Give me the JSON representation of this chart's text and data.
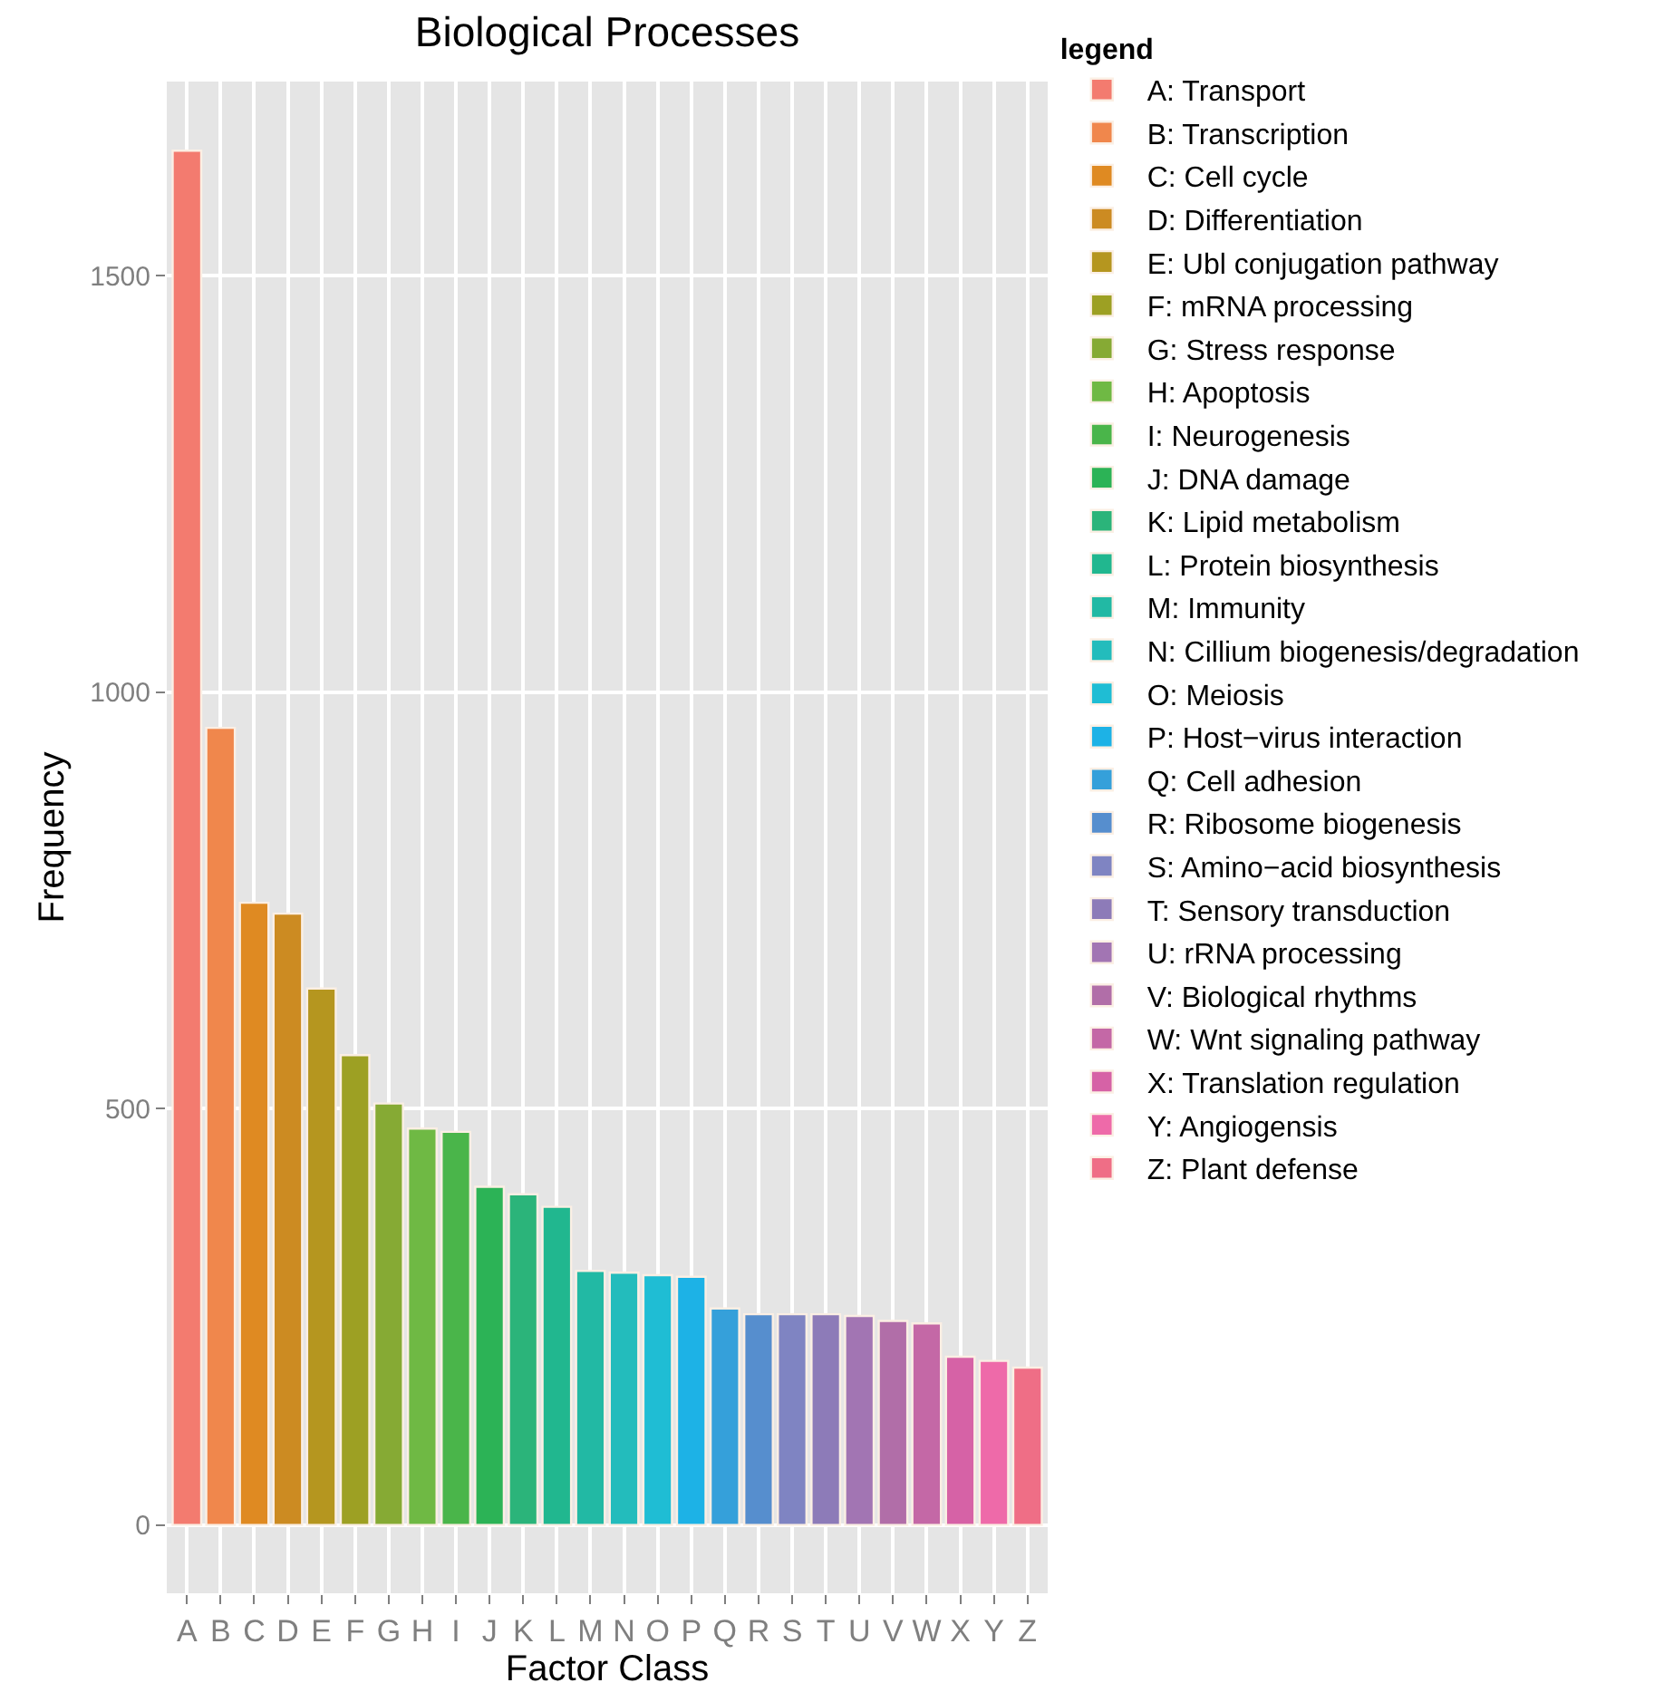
{
  "chart_data": {
    "type": "bar",
    "title": "Biological Processes",
    "xlabel": "Factor Class",
    "ylabel": "Frequency",
    "legend_title": "legend",
    "categories": [
      "A",
      "B",
      "C",
      "D",
      "E",
      "F",
      "G",
      "H",
      "I",
      "J",
      "K",
      "L",
      "M",
      "N",
      "O",
      "P",
      "Q",
      "R",
      "S",
      "T",
      "U",
      "V",
      "W",
      "X",
      "Y",
      "Z"
    ],
    "series": [
      {
        "name": "A: Transport",
        "color": "#f37b6f",
        "values": [
          1650,
          null,
          null,
          null,
          null,
          null,
          null,
          null,
          null,
          null,
          null,
          null,
          null,
          null,
          null,
          null,
          null,
          null,
          null,
          null,
          null,
          null,
          null,
          null,
          null,
          null
        ]
      },
      {
        "name": "B: Transcription",
        "color": "#f0874c",
        "values": [
          null,
          957,
          null,
          null,
          null,
          null,
          null,
          null,
          null,
          null,
          null,
          null,
          null,
          null,
          null,
          null,
          null,
          null,
          null,
          null,
          null,
          null,
          null,
          null,
          null,
          null
        ]
      },
      {
        "name": "C: Cell cycle",
        "color": "#df8a22",
        "values": [
          null,
          null,
          747,
          null,
          null,
          null,
          null,
          null,
          null,
          null,
          null,
          null,
          null,
          null,
          null,
          null,
          null,
          null,
          null,
          null,
          null,
          null,
          null,
          null,
          null,
          null
        ]
      },
      {
        "name": "D: Differentiation",
        "color": "#cc8b22",
        "values": [
          null,
          null,
          null,
          734,
          null,
          null,
          null,
          null,
          null,
          null,
          null,
          null,
          null,
          null,
          null,
          null,
          null,
          null,
          null,
          null,
          null,
          null,
          null,
          null,
          null,
          null
        ]
      },
      {
        "name": "E: Ubl conjugation pathway",
        "color": "#b5961f",
        "values": [
          null,
          null,
          null,
          null,
          644,
          null,
          null,
          null,
          null,
          null,
          null,
          null,
          null,
          null,
          null,
          null,
          null,
          null,
          null,
          null,
          null,
          null,
          null,
          null,
          null,
          null
        ]
      },
      {
        "name": "F: mRNA processing",
        "color": "#9da023",
        "values": [
          null,
          null,
          null,
          null,
          null,
          564,
          null,
          null,
          null,
          null,
          null,
          null,
          null,
          null,
          null,
          null,
          null,
          null,
          null,
          null,
          null,
          null,
          null,
          null,
          null,
          null
        ]
      },
      {
        "name": "G: Stress response",
        "color": "#86aa34",
        "values": [
          null,
          null,
          null,
          null,
          null,
          null,
          506,
          null,
          null,
          null,
          null,
          null,
          null,
          null,
          null,
          null,
          null,
          null,
          null,
          null,
          null,
          null,
          null,
          null,
          null,
          null
        ]
      },
      {
        "name": "H: Apoptosis",
        "color": "#6fb944",
        "values": [
          null,
          null,
          null,
          null,
          null,
          null,
          null,
          476,
          null,
          null,
          null,
          null,
          null,
          null,
          null,
          null,
          null,
          null,
          null,
          null,
          null,
          null,
          null,
          null,
          null,
          null
        ]
      },
      {
        "name": "I: Neurogenesis",
        "color": "#4ab54a",
        "values": [
          null,
          null,
          null,
          null,
          null,
          null,
          null,
          null,
          472,
          null,
          null,
          null,
          null,
          null,
          null,
          null,
          null,
          null,
          null,
          null,
          null,
          null,
          null,
          null,
          null,
          null
        ]
      },
      {
        "name": "J: DNA damage",
        "color": "#2cb356",
        "values": [
          null,
          null,
          null,
          null,
          null,
          null,
          null,
          null,
          null,
          406,
          null,
          null,
          null,
          null,
          null,
          null,
          null,
          null,
          null,
          null,
          null,
          null,
          null,
          null,
          null,
          null
        ]
      },
      {
        "name": "K: Lipid metabolism",
        "color": "#2bb47a",
        "values": [
          null,
          null,
          null,
          null,
          null,
          null,
          null,
          null,
          null,
          null,
          397,
          null,
          null,
          null,
          null,
          null,
          null,
          null,
          null,
          null,
          null,
          null,
          null,
          null,
          null,
          null
        ]
      },
      {
        "name": "L: Protein biosynthesis",
        "color": "#21b78f",
        "values": [
          null,
          null,
          null,
          null,
          null,
          null,
          null,
          null,
          null,
          null,
          null,
          382,
          null,
          null,
          null,
          null,
          null,
          null,
          null,
          null,
          null,
          null,
          null,
          null,
          null,
          null
        ]
      },
      {
        "name": "M: Immunity",
        "color": "#22b9a4",
        "values": [
          null,
          null,
          null,
          null,
          null,
          null,
          null,
          null,
          null,
          null,
          null,
          null,
          305,
          null,
          null,
          null,
          null,
          null,
          null,
          null,
          null,
          null,
          null,
          null,
          null,
          null
        ]
      },
      {
        "name": "N: Cillium biogenesis/degradation",
        "color": "#23bcbc",
        "values": [
          null,
          null,
          null,
          null,
          null,
          null,
          null,
          null,
          null,
          null,
          null,
          null,
          null,
          303,
          null,
          null,
          null,
          null,
          null,
          null,
          null,
          null,
          null,
          null,
          null,
          null
        ]
      },
      {
        "name": "O: Meiosis",
        "color": "#1fbdd4",
        "values": [
          null,
          null,
          null,
          null,
          null,
          null,
          null,
          null,
          null,
          null,
          null,
          null,
          null,
          null,
          300,
          null,
          null,
          null,
          null,
          null,
          null,
          null,
          null,
          null,
          null,
          null
        ]
      },
      {
        "name": "P: Host−virus interaction",
        "color": "#1db2e6",
        "values": [
          null,
          null,
          null,
          null,
          null,
          null,
          null,
          null,
          null,
          null,
          null,
          null,
          null,
          null,
          null,
          298,
          null,
          null,
          null,
          null,
          null,
          null,
          null,
          null,
          null,
          null
        ]
      },
      {
        "name": "Q: Cell adhesion",
        "color": "#35a0da",
        "values": [
          null,
          null,
          null,
          null,
          null,
          null,
          null,
          null,
          null,
          null,
          null,
          null,
          null,
          null,
          null,
          null,
          260,
          null,
          null,
          null,
          null,
          null,
          null,
          null,
          null,
          null
        ]
      },
      {
        "name": "R: Ribosome biogenesis",
        "color": "#568ece",
        "values": [
          null,
          null,
          null,
          null,
          null,
          null,
          null,
          null,
          null,
          null,
          null,
          null,
          null,
          null,
          null,
          null,
          null,
          253,
          null,
          null,
          null,
          null,
          null,
          null,
          null,
          null
        ]
      },
      {
        "name": "S: Amino−acid biosynthesis",
        "color": "#7f84c2",
        "values": [
          null,
          null,
          null,
          null,
          null,
          null,
          null,
          null,
          null,
          null,
          null,
          null,
          null,
          null,
          null,
          null,
          null,
          null,
          253,
          null,
          null,
          null,
          null,
          null,
          null,
          null
        ]
      },
      {
        "name": "T: Sensory transduction",
        "color": "#8d7bb8",
        "values": [
          null,
          null,
          null,
          null,
          null,
          null,
          null,
          null,
          null,
          null,
          null,
          null,
          null,
          null,
          null,
          null,
          null,
          null,
          null,
          253,
          null,
          null,
          null,
          null,
          null,
          null
        ]
      },
      {
        "name": "U: rRNA processing",
        "color": "#a275b3",
        "values": [
          null,
          null,
          null,
          null,
          null,
          null,
          null,
          null,
          null,
          null,
          null,
          null,
          null,
          null,
          null,
          null,
          null,
          null,
          null,
          null,
          251,
          null,
          null,
          null,
          null,
          null
        ]
      },
      {
        "name": "V: Biological rhythms",
        "color": "#b16ea8",
        "values": [
          null,
          null,
          null,
          null,
          null,
          null,
          null,
          null,
          null,
          null,
          null,
          null,
          null,
          null,
          null,
          null,
          null,
          null,
          null,
          null,
          null,
          245,
          null,
          null,
          null,
          null
        ]
      },
      {
        "name": "W: Wnt signaling pathway",
        "color": "#c468a6",
        "values": [
          null,
          null,
          null,
          null,
          null,
          null,
          null,
          null,
          null,
          null,
          null,
          null,
          null,
          null,
          null,
          null,
          null,
          null,
          null,
          null,
          null,
          null,
          242,
          null,
          null,
          null
        ]
      },
      {
        "name": "X: Translation regulation",
        "color": "#d662a6",
        "values": [
          null,
          null,
          null,
          null,
          null,
          null,
          null,
          null,
          null,
          null,
          null,
          null,
          null,
          null,
          null,
          null,
          null,
          null,
          null,
          null,
          null,
          null,
          null,
          202,
          null,
          null
        ]
      },
      {
        "name": "Y: Angiogensis",
        "color": "#ee6aa9",
        "values": [
          null,
          null,
          null,
          null,
          null,
          null,
          null,
          null,
          null,
          null,
          null,
          null,
          null,
          null,
          null,
          null,
          null,
          null,
          null,
          null,
          null,
          null,
          null,
          null,
          197,
          null
        ]
      },
      {
        "name": "Z: Plant defense",
        "color": "#ef6e86",
        "values": [
          null,
          null,
          null,
          null,
          null,
          null,
          null,
          null,
          null,
          null,
          null,
          null,
          null,
          null,
          null,
          null,
          null,
          null,
          null,
          null,
          null,
          null,
          null,
          null,
          null,
          189
        ]
      }
    ],
    "ylim": [
      -82,
      1733
    ],
    "yticks": [
      0,
      500,
      1000,
      1500
    ],
    "grid": true,
    "legend": "top right"
  }
}
